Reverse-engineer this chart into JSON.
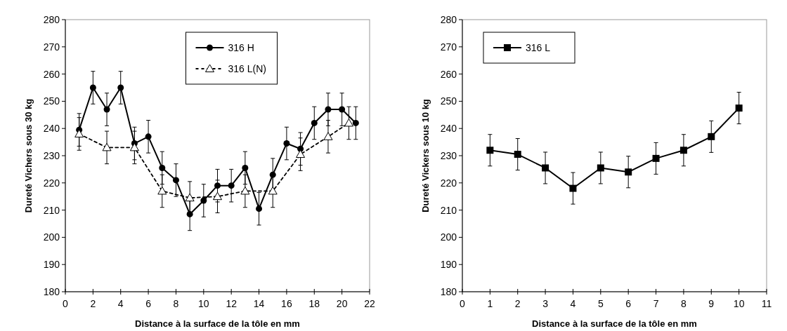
{
  "chart_data": [
    {
      "type": "line",
      "xlabel": "Distance à la surface de la tôle en mm",
      "ylabel": "Dureté Vichers sous 30 kg",
      "xlim": [
        0,
        22
      ],
      "xticks": [
        0,
        2,
        4,
        6,
        8,
        10,
        12,
        14,
        16,
        18,
        20,
        22
      ],
      "ylim": [
        180,
        280
      ],
      "yticks": [
        180,
        190,
        200,
        210,
        220,
        230,
        240,
        250,
        260,
        270,
        280
      ],
      "legend": "top",
      "grid": false,
      "series": [
        {
          "name": "316 H",
          "color": "#000000",
          "marker": "circle",
          "line_style": "solid",
          "x": [
            1,
            2,
            3,
            4,
            5,
            6,
            7,
            8,
            9,
            10,
            11,
            12,
            13,
            14,
            15,
            16,
            17,
            18,
            19,
            20,
            21
          ],
          "values": [
            239.5,
            255,
            247,
            255,
            234.5,
            237,
            225.5,
            221,
            208.5,
            213.5,
            219,
            219,
            225.5,
            210.5,
            223,
            234.5,
            232.5,
            242,
            247,
            247,
            242
          ],
          "errors": [
            6,
            6,
            6,
            6,
            6,
            6,
            6,
            6,
            6,
            6,
            6,
            6,
            6,
            6,
            6,
            6,
            6,
            6,
            6,
            6,
            6
          ]
        },
        {
          "name": "316 L(N)",
          "color": "#000000",
          "marker": "triangle",
          "line_style": "dashed",
          "x": [
            1,
            3,
            5,
            7,
            9,
            11,
            13,
            15,
            17,
            19,
            20.5
          ],
          "values": [
            238,
            233,
            233,
            217,
            214.5,
            215,
            217,
            217,
            230.5,
            237,
            242
          ],
          "errors": [
            6,
            6,
            6,
            6,
            6,
            6,
            6,
            6,
            6,
            6,
            6
          ]
        }
      ]
    },
    {
      "type": "line",
      "xlabel": "Distance à la surface de la tôle en mm",
      "ylabel": "Dureté Vickers sous 10 kg",
      "xlim": [
        0,
        11
      ],
      "xticks": [
        0,
        1,
        2,
        3,
        4,
        5,
        6,
        7,
        8,
        9,
        10,
        11
      ],
      "ylim": [
        180,
        280
      ],
      "yticks": [
        180,
        190,
        200,
        210,
        220,
        230,
        240,
        250,
        260,
        270,
        280
      ],
      "legend": "top left",
      "grid": false,
      "series": [
        {
          "name": "316 L",
          "color": "#000000",
          "marker": "square",
          "line_style": "solid",
          "x": [
            1,
            2,
            3,
            4,
            5,
            6,
            7,
            8,
            9,
            10
          ],
          "values": [
            232,
            230.5,
            225.5,
            218,
            225.5,
            224,
            229,
            232,
            237,
            247.5
          ],
          "errors": [
            5.8,
            5.8,
            5.8,
            5.8,
            5.8,
            5.8,
            5.8,
            5.8,
            5.8,
            5.8
          ]
        }
      ]
    }
  ]
}
